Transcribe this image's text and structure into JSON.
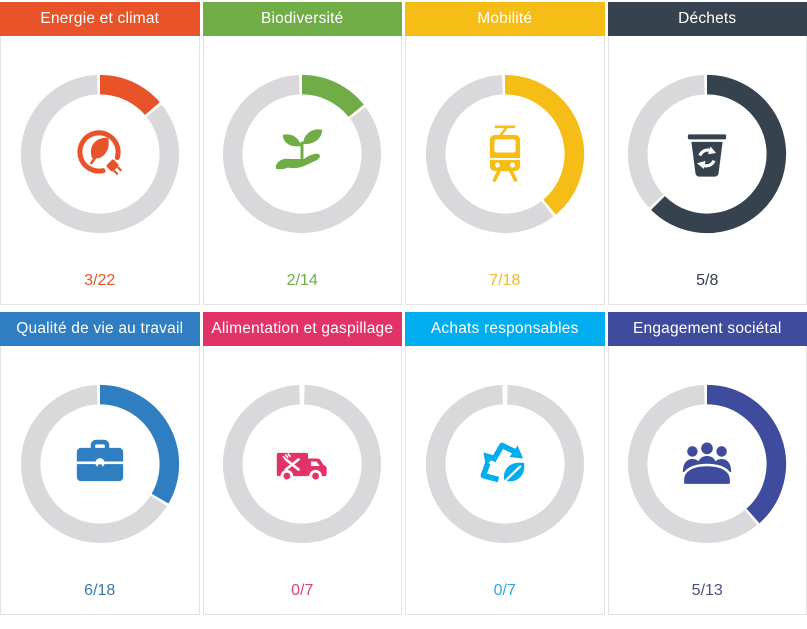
{
  "theme": {
    "background": "#FFFFFF",
    "track_color": "#D9D9DB",
    "card_border": "#E4E4E6",
    "header_text_color": "#FFFFFF"
  },
  "cards": [
    {
      "title": "Energie et climat",
      "color": "#E8532A",
      "label_color": "#E8532A",
      "value": 3,
      "total": 22,
      "score_label": "3/22",
      "icon": "leaf-plug-energy-icon"
    },
    {
      "title": "Biodiversité",
      "color": "#70AD47",
      "label_color": "#70AD47",
      "value": 2,
      "total": 14,
      "score_label": "2/14",
      "icon": "hand-plant-icon"
    },
    {
      "title": "Mobilité",
      "color": "#F5BD16",
      "label_color": "#F0BB2A",
      "value": 7,
      "total": 18,
      "score_label": "7/18",
      "icon": "tram-icon"
    },
    {
      "title": "Déchets",
      "color": "#36424E",
      "label_color": "#333E49",
      "value": 5,
      "total": 8,
      "score_label": "5/8",
      "icon": "recycle-bin-icon"
    },
    {
      "title": "Qualité de vie au travail",
      "color": "#2E7EC1",
      "label_color": "#3C78A8",
      "value": 6,
      "total": 18,
      "score_label": "6/18",
      "icon": "briefcase-icon"
    },
    {
      "title": "Alimentation et gaspillage",
      "color": "#E23368",
      "label_color": "#D64573",
      "value": 0,
      "total": 7,
      "score_label": "0/7",
      "icon": "food-truck-icon"
    },
    {
      "title": "Achats responsables",
      "color": "#00ADEF",
      "label_color": "#2BAADF",
      "value": 0,
      "total": 7,
      "score_label": "0/7",
      "icon": "recycle-leaf-icon"
    },
    {
      "title": "Engagement sociétal",
      "color": "#3F4C9E",
      "label_color": "#4A5380",
      "value": 5,
      "total": 13,
      "score_label": "5/13",
      "icon": "meeting-people-icon"
    }
  ],
  "chart_data": [
    {
      "type": "pie",
      "subtype": "donut",
      "title": "Energie et climat",
      "slice_names": [
        "completed",
        "remaining"
      ],
      "values": [
        3,
        19
      ],
      "total": 22,
      "annotation": "3/22",
      "colors": [
        "#E8532A",
        "#D9D9DB"
      ],
      "start_angle_deg": 0,
      "direction": "clockwise"
    },
    {
      "type": "pie",
      "subtype": "donut",
      "title": "Biodiversité",
      "slice_names": [
        "completed",
        "remaining"
      ],
      "values": [
        2,
        12
      ],
      "total": 14,
      "annotation": "2/14",
      "colors": [
        "#70AD47",
        "#D9D9DB"
      ],
      "start_angle_deg": 0,
      "direction": "clockwise"
    },
    {
      "type": "pie",
      "subtype": "donut",
      "title": "Mobilité",
      "slice_names": [
        "completed",
        "remaining"
      ],
      "values": [
        7,
        11
      ],
      "total": 18,
      "annotation": "7/18",
      "colors": [
        "#F5BD16",
        "#D9D9DB"
      ],
      "start_angle_deg": 0,
      "direction": "clockwise"
    },
    {
      "type": "pie",
      "subtype": "donut",
      "title": "Déchets",
      "slice_names": [
        "completed",
        "remaining"
      ],
      "values": [
        5,
        3
      ],
      "total": 8,
      "annotation": "5/8",
      "colors": [
        "#36424E",
        "#D9D9DB"
      ],
      "start_angle_deg": 0,
      "direction": "clockwise"
    },
    {
      "type": "pie",
      "subtype": "donut",
      "title": "Qualité de vie au travail",
      "slice_names": [
        "completed",
        "remaining"
      ],
      "values": [
        6,
        12
      ],
      "total": 18,
      "annotation": "6/18",
      "colors": [
        "#2E7EC1",
        "#D9D9DB"
      ],
      "start_angle_deg": 0,
      "direction": "clockwise"
    },
    {
      "type": "pie",
      "subtype": "donut",
      "title": "Alimentation et gaspillage",
      "slice_names": [
        "completed",
        "remaining"
      ],
      "values": [
        0,
        7
      ],
      "total": 7,
      "annotation": "0/7",
      "colors": [
        "#E23368",
        "#D9D9DB"
      ],
      "start_angle_deg": 0,
      "direction": "clockwise"
    },
    {
      "type": "pie",
      "subtype": "donut",
      "title": "Achats responsables",
      "slice_names": [
        "completed",
        "remaining"
      ],
      "values": [
        0,
        7
      ],
      "total": 7,
      "annotation": "0/7",
      "colors": [
        "#00ADEF",
        "#D9D9DB"
      ],
      "start_angle_deg": 0,
      "direction": "clockwise"
    },
    {
      "type": "pie",
      "subtype": "donut",
      "title": "Engagement sociétal",
      "slice_names": [
        "completed",
        "remaining"
      ],
      "values": [
        5,
        8
      ],
      "total": 13,
      "annotation": "5/13",
      "colors": [
        "#3F4C9E",
        "#D9D9DB"
      ],
      "start_angle_deg": 0,
      "direction": "clockwise"
    }
  ]
}
